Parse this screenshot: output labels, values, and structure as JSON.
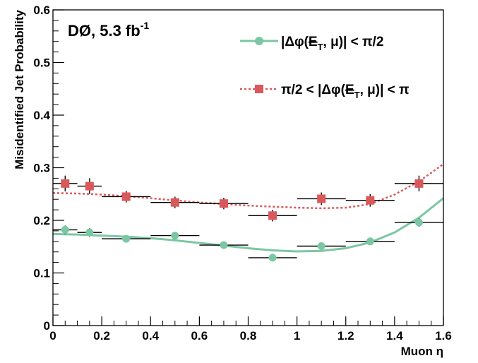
{
  "chart_data": {
    "type": "scatter",
    "experiment_label": "DØ, 5.3 fb",
    "experiment_label_sup": "-1",
    "xlabel": "Muon η",
    "ylabel": "Misidentified Jet Probability",
    "xlim": [
      0,
      1.6
    ],
    "ylim": [
      0,
      0.6
    ],
    "x_ticks": [
      "0",
      "0.2",
      "0.4",
      "0.6",
      "0.8",
      "1",
      "1.2",
      "1.4",
      "1.6"
    ],
    "y_ticks": [
      "0",
      "0.1",
      "0.2",
      "0.3",
      "0.4",
      "0.5",
      "0.6"
    ],
    "legend_position": "top-right",
    "series": [
      {
        "name": "|Δφ(E̸T, μ)| < π/2",
        "legend_label": {
          "pre": "|Δφ(",
          "met": "E",
          "sub": "T",
          "post": ", μ)| < π/2"
        },
        "color": "#7cc7a3",
        "marker": "circle",
        "fit_style": "solid",
        "points": [
          {
            "x": 0.05,
            "xerr": 0.05,
            "y": 0.182,
            "yerr": 0.008
          },
          {
            "x": 0.15,
            "xerr": 0.05,
            "y": 0.177,
            "yerr": 0.008
          },
          {
            "x": 0.3,
            "xerr": 0.1,
            "y": 0.165,
            "yerr": 0.006
          },
          {
            "x": 0.5,
            "xerr": 0.1,
            "y": 0.171,
            "yerr": 0.006
          },
          {
            "x": 0.7,
            "xerr": 0.1,
            "y": 0.153,
            "yerr": 0.005
          },
          {
            "x": 0.9,
            "xerr": 0.1,
            "y": 0.129,
            "yerr": 0.005
          },
          {
            "x": 1.1,
            "xerr": 0.1,
            "y": 0.151,
            "yerr": 0.005
          },
          {
            "x": 1.3,
            "xerr": 0.1,
            "y": 0.16,
            "yerr": 0.006
          },
          {
            "x": 1.5,
            "xerr": 0.1,
            "y": 0.196,
            "yerr": 0.008
          }
        ],
        "fit": [
          {
            "x": 0.0,
            "y": 0.174
          },
          {
            "x": 0.1,
            "y": 0.173
          },
          {
            "x": 0.2,
            "y": 0.171
          },
          {
            "x": 0.3,
            "y": 0.169
          },
          {
            "x": 0.4,
            "y": 0.166
          },
          {
            "x": 0.5,
            "y": 0.162
          },
          {
            "x": 0.6,
            "y": 0.157
          },
          {
            "x": 0.7,
            "y": 0.152
          },
          {
            "x": 0.8,
            "y": 0.147
          },
          {
            "x": 0.9,
            "y": 0.143
          },
          {
            "x": 1.0,
            "y": 0.141
          },
          {
            "x": 1.1,
            "y": 0.142
          },
          {
            "x": 1.2,
            "y": 0.147
          },
          {
            "x": 1.3,
            "y": 0.158
          },
          {
            "x": 1.4,
            "y": 0.177
          },
          {
            "x": 1.5,
            "y": 0.205
          },
          {
            "x": 1.6,
            "y": 0.242
          }
        ]
      },
      {
        "name": "π/2 < |Δφ(E̸T, μ)| < π",
        "legend_label": {
          "pre": "π/2 < |Δφ(",
          "met": "E",
          "sub": "T",
          "post": ", μ)| < π"
        },
        "color": "#d9585c",
        "marker": "square",
        "fit_style": "dashed",
        "points": [
          {
            "x": 0.05,
            "xerr": 0.05,
            "y": 0.27,
            "yerr": 0.015
          },
          {
            "x": 0.15,
            "xerr": 0.05,
            "y": 0.265,
            "yerr": 0.015
          },
          {
            "x": 0.3,
            "xerr": 0.1,
            "y": 0.245,
            "yerr": 0.011
          },
          {
            "x": 0.5,
            "xerr": 0.1,
            "y": 0.234,
            "yerr": 0.011
          },
          {
            "x": 0.7,
            "xerr": 0.1,
            "y": 0.232,
            "yerr": 0.011
          },
          {
            "x": 0.9,
            "xerr": 0.1,
            "y": 0.209,
            "yerr": 0.011
          },
          {
            "x": 1.1,
            "xerr": 0.1,
            "y": 0.241,
            "yerr": 0.012
          },
          {
            "x": 1.3,
            "xerr": 0.1,
            "y": 0.238,
            "yerr": 0.012
          },
          {
            "x": 1.5,
            "xerr": 0.1,
            "y": 0.27,
            "yerr": 0.015
          }
        ],
        "fit": [
          {
            "x": 0.0,
            "y": 0.252
          },
          {
            "x": 0.1,
            "y": 0.251
          },
          {
            "x": 0.2,
            "y": 0.249
          },
          {
            "x": 0.3,
            "y": 0.246
          },
          {
            "x": 0.4,
            "y": 0.242
          },
          {
            "x": 0.5,
            "y": 0.238
          },
          {
            "x": 0.6,
            "y": 0.234
          },
          {
            "x": 0.7,
            "y": 0.231
          },
          {
            "x": 0.8,
            "y": 0.228
          },
          {
            "x": 0.9,
            "y": 0.226
          },
          {
            "x": 1.0,
            "y": 0.224
          },
          {
            "x": 1.1,
            "y": 0.223
          },
          {
            "x": 1.2,
            "y": 0.224
          },
          {
            "x": 1.3,
            "y": 0.231
          },
          {
            "x": 1.4,
            "y": 0.249
          },
          {
            "x": 1.5,
            "y": 0.274
          },
          {
            "x": 1.6,
            "y": 0.307
          }
        ]
      }
    ]
  }
}
